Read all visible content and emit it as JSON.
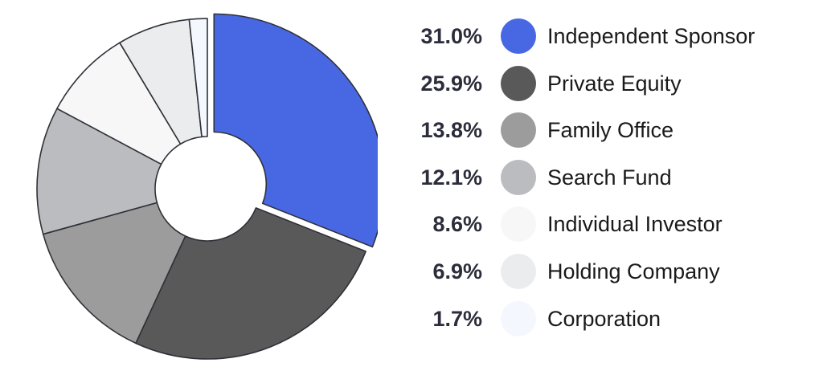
{
  "chart_data": {
    "type": "pie",
    "style": "donut",
    "exploded_slice": "Independent Sponsor",
    "slices": [
      {
        "label": "Independent Sponsor",
        "value": 31.0,
        "display": "31.0%",
        "color": "#4868e3"
      },
      {
        "label": "Private Equity",
        "value": 25.9,
        "display": "25.9%",
        "color": "#595959"
      },
      {
        "label": "Family Office",
        "value": 13.8,
        "display": "13.8%",
        "color": "#9c9c9c"
      },
      {
        "label": "Search Fund",
        "value": 12.1,
        "display": "12.1%",
        "color": "#babcbf"
      },
      {
        "label": "Individual Investor",
        "value": 8.6,
        "display": "8.6%",
        "color": "#f7f7f7"
      },
      {
        "label": "Holding Company",
        "value": 6.9,
        "display": "6.9%",
        "color": "#ebecee"
      },
      {
        "label": "Corporation",
        "value": 1.7,
        "display": "1.7%",
        "color": "#f4f7fe"
      }
    ],
    "legend_position": "right"
  }
}
